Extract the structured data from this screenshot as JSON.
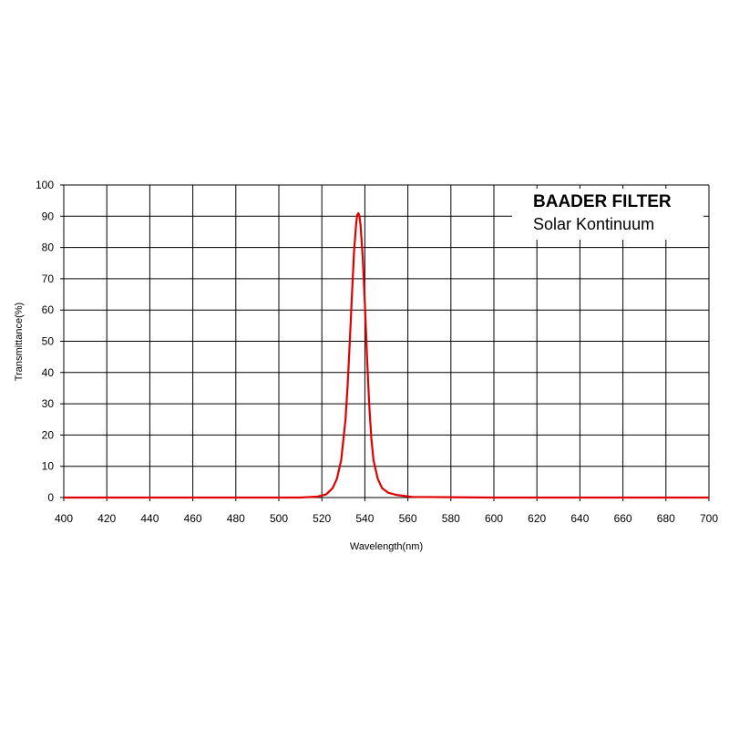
{
  "chart_data": {
    "type": "line",
    "legend": {
      "title": "BAADER FILTER",
      "subtitle": "Solar Kontinuum",
      "placement": "top-right"
    },
    "xlabel": "Wavelength(nm)",
    "ylabel": "Transmittance(%)",
    "xlim": [
      400,
      700
    ],
    "ylim": [
      0,
      100
    ],
    "xticks": [
      400,
      420,
      440,
      460,
      480,
      500,
      520,
      540,
      560,
      580,
      600,
      620,
      640,
      660,
      680,
      700
    ],
    "yticks": [
      0,
      10,
      20,
      30,
      40,
      50,
      60,
      70,
      80,
      90,
      100
    ],
    "grid": true,
    "series": [
      {
        "color": "#e00000",
        "x": [
          400,
          510,
          518,
          522,
          525,
          527,
          529,
          531,
          532,
          533,
          534,
          535,
          536,
          536.5,
          537,
          537.5,
          538,
          539,
          540,
          541,
          542,
          543,
          544,
          546,
          548,
          551,
          555,
          562,
          600,
          700
        ],
        "y": [
          0,
          0,
          0.3,
          1,
          3,
          6,
          12,
          25,
          36,
          50,
          65,
          79,
          88,
          90.5,
          91,
          90,
          87,
          77,
          62,
          45,
          30,
          19,
          12,
          6,
          3,
          1.5,
          0.8,
          0.2,
          0,
          0
        ]
      }
    ]
  }
}
